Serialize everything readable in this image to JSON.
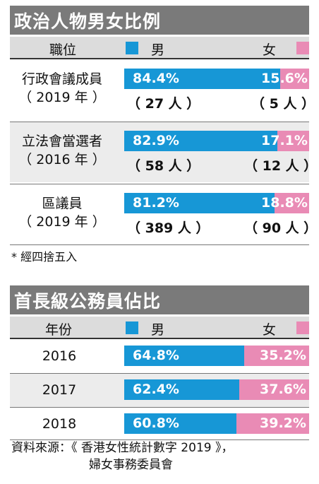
{
  "colors": {
    "male": "#1797d6",
    "female": "#e98bb5",
    "title_bg": "#7a7a7a",
    "header_bg": "#dcdcdc",
    "row_bg": "#ececec"
  },
  "chart_data": [
    {
      "type": "bar",
      "title": "政治人物男女比例",
      "category_header": "職位",
      "series": [
        {
          "name": "男",
          "values": [
            84.4,
            82.9,
            81.2
          ],
          "counts": [
            "（ 27 人 ）",
            "（ 58 人 ）",
            "（ 389 人 ）"
          ]
        },
        {
          "name": "女",
          "values": [
            15.6,
            17.1,
            18.8
          ],
          "counts": [
            "（ 5 人 ）",
            "（ 12 人 ）",
            "（ 90 人 ）"
          ]
        }
      ],
      "categories": [
        {
          "line1": "行政會議成員",
          "line2": "（ 2019 年 ）"
        },
        {
          "line1": "立法會當選者",
          "line2": "（ 2016 年 ）"
        },
        {
          "line1": "區議員",
          "line2": "（ 2019 年 ）"
        }
      ],
      "value_labels": {
        "male": [
          "84.4%",
          "82.9%",
          "81.2%"
        ],
        "female": [
          "15.6%",
          "17.1%",
          "18.8%"
        ]
      },
      "footnote": "* 經四捨五入"
    },
    {
      "type": "bar",
      "title": "首長級公務員佔比",
      "category_header": "年份",
      "categories": [
        "2016",
        "2017",
        "2018"
      ],
      "series": [
        {
          "name": "男",
          "values": [
            64.8,
            62.4,
            60.8
          ]
        },
        {
          "name": "女",
          "values": [
            35.2,
            37.6,
            39.2
          ]
        }
      ],
      "value_labels": {
        "male": [
          "64.8%",
          "62.4%",
          "60.8%"
        ],
        "female": [
          "35.2%",
          "37.6%",
          "39.2%"
        ]
      }
    }
  ],
  "source": {
    "line1": "資料來源：《 香港女性統計數字 2019 》，",
    "line2": "婦女事務委員會"
  }
}
